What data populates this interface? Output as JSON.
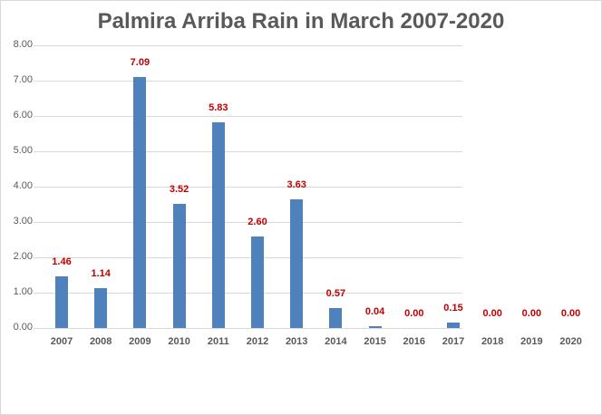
{
  "chart_data": {
    "type": "bar",
    "title": "Palmira Arriba Rain in March 2007-2020",
    "xlabel": "",
    "ylabel": "",
    "ylim": [
      0,
      8
    ],
    "yticks": [
      "0.00",
      "1.00",
      "2.00",
      "3.00",
      "4.00",
      "5.00",
      "6.00",
      "7.00",
      "8.00"
    ],
    "grid": true,
    "legend": null,
    "categories": [
      "2007",
      "2008",
      "2009",
      "2010",
      "2011",
      "2012",
      "2013",
      "2014",
      "2015",
      "2016",
      "2017",
      "2018",
      "2019",
      "2020"
    ],
    "values": [
      1.46,
      1.14,
      7.09,
      3.52,
      5.83,
      2.6,
      3.63,
      0.57,
      0.04,
      0.0,
      0.15,
      0.0,
      0.0,
      0.0
    ],
    "data_labels": [
      "1.46",
      "1.14",
      "7.09",
      "3.52",
      "5.83",
      "2.60",
      "3.63",
      "0.57",
      "0.04",
      "0.00",
      "0.15",
      "0.00",
      "0.00",
      "0.00"
    ],
    "colors": {
      "bar": "#4f81bd",
      "data_label": "#c00000",
      "axis_text": "#595959",
      "grid": "#d9d9d9"
    }
  }
}
